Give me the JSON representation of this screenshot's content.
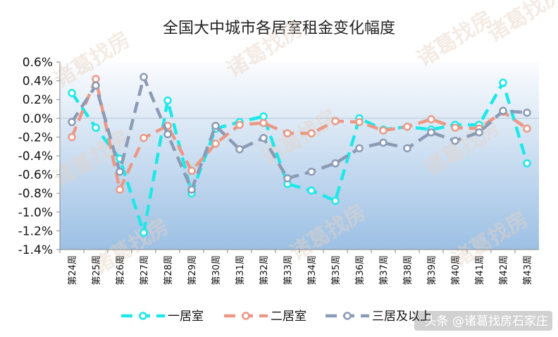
{
  "chart_data": {
    "type": "line",
    "title": "全国大中城市各居室租金变化幅度",
    "xlabel": "",
    "ylabel": "",
    "categories": [
      "第24周",
      "第25周",
      "第26周",
      "第27周",
      "第28周",
      "第29周",
      "第30周",
      "第31周",
      "第32周",
      "第33周",
      "第34周",
      "第35周",
      "第36周",
      "第37周",
      "第38周",
      "第39周",
      "第40周",
      "第41周",
      "第42周",
      "第43周"
    ],
    "ylim": [
      -1.4,
      0.6
    ],
    "yticks": [
      "0.6%",
      "0.4%",
      "0.2%",
      "0.0%",
      "-0.2%",
      "-0.4%",
      "-0.6%",
      "-0.8%",
      "-1.0%",
      "-1.2%",
      "-1.4%"
    ],
    "grid": false,
    "legend_position": "bottom",
    "series": [
      {
        "name": "一居室",
        "color": "#1de8e8",
        "values": [
          0.27,
          -0.1,
          -0.43,
          -1.22,
          0.19,
          -0.8,
          -0.11,
          -0.04,
          0.02,
          -0.7,
          -0.77,
          -0.88,
          0.0,
          -0.12,
          -0.09,
          -0.12,
          -0.07,
          -0.07,
          0.38,
          -0.48
        ]
      },
      {
        "name": "二居室",
        "color": "#eb9985",
        "values": [
          -0.2,
          0.42,
          -0.76,
          -0.21,
          -0.08,
          -0.56,
          -0.27,
          -0.07,
          -0.05,
          -0.16,
          -0.16,
          -0.03,
          -0.04,
          -0.13,
          -0.09,
          -0.01,
          -0.1,
          -0.11,
          0.07,
          -0.11
        ]
      },
      {
        "name": "三居及以上",
        "color": "#8c9bb5",
        "values": [
          -0.04,
          0.35,
          -0.57,
          0.44,
          -0.17,
          -0.76,
          -0.08,
          -0.33,
          -0.21,
          -0.64,
          -0.57,
          -0.48,
          -0.32,
          -0.26,
          -0.32,
          -0.15,
          -0.24,
          -0.15,
          0.08,
          0.06
        ]
      }
    ]
  },
  "watermark": "诸葛找房",
  "credit": "头条 @诸葛找房石家庄"
}
